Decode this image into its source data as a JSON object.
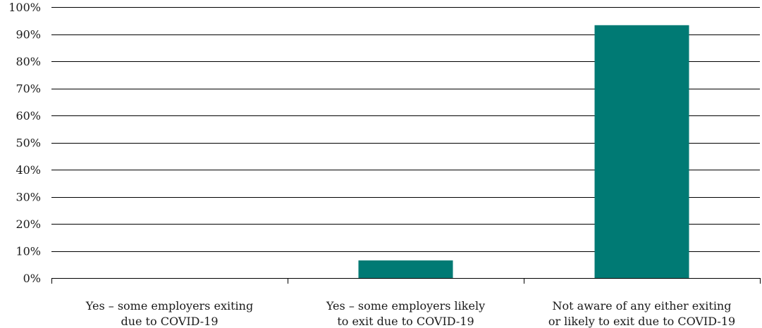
{
  "chart_data": {
    "type": "bar",
    "title": "",
    "xlabel": "",
    "ylabel": "",
    "ylim": [
      0,
      100
    ],
    "yticks": [
      0,
      10,
      20,
      30,
      40,
      50,
      60,
      70,
      80,
      90,
      100
    ],
    "ytick_labels": [
      "0%",
      "10%",
      "20%",
      "30%",
      "40%",
      "50%",
      "60%",
      "70%",
      "80%",
      "90%",
      "100%"
    ],
    "grid": true,
    "bar_color": "#007a74",
    "categories": [
      [
        "Yes – some employers exiting",
        "due to COVID-19"
      ],
      [
        "Yes – some employers likely",
        "to exit due to COVID-19"
      ],
      [
        "Not aware of any either exiting",
        "or likely to exit due to COVID-19"
      ]
    ],
    "values": [
      0,
      6.5,
      93.3
    ]
  }
}
